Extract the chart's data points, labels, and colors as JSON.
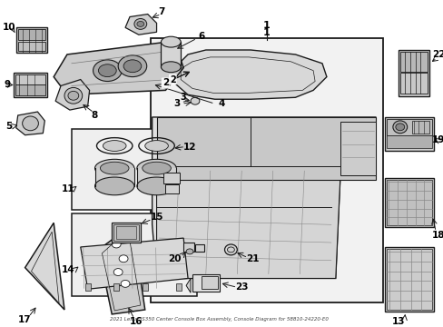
{
  "title": "2021 Lexus IS350 Center Console Box Assembly, Console Diagram for 58810-24220-E0",
  "bg": "#ffffff",
  "lc": "#1a1a1a",
  "gray_fill": "#e8e8e8",
  "light_fill": "#f2f2f2",
  "mid_fill": "#d0d0d0",
  "dark_fill": "#b0b0b0",
  "fig_w": 4.89,
  "fig_h": 3.6,
  "dpi": 100
}
